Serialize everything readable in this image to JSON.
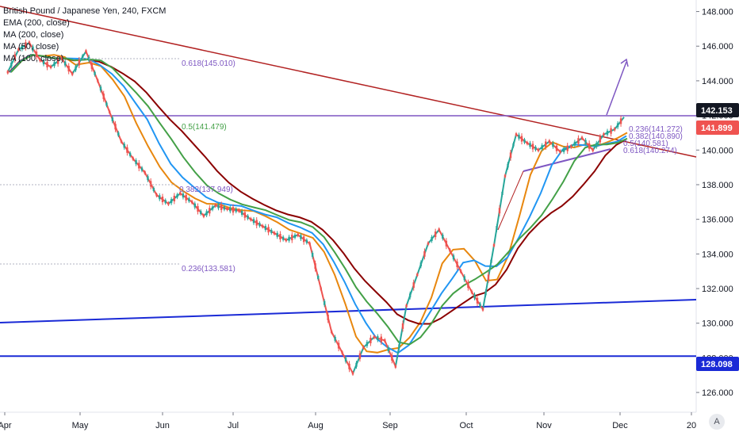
{
  "legend": {
    "title": "British Pound / Japanese Yen, 240, FXCM",
    "line2": "EMA (200, close)",
    "line3": "MA (200, close)",
    "line4": "MA (50, close)",
    "line5": "MA (100, close)"
  },
  "chart_data": {
    "type": "line",
    "title": "British Pound / Japanese Yen, 240, FXCM",
    "y_axis": {
      "range": [
        125.5,
        148.3
      ],
      "ticks": [
        "148.000",
        "146.000",
        "144.000",
        "142.000",
        "140.000",
        "138.000",
        "136.000",
        "134.000",
        "132.000",
        "130.000",
        "128.000",
        "126.000"
      ]
    },
    "x_axis": {
      "ticks": [
        "Apr",
        "May",
        "Jun",
        "Jul",
        "Aug",
        "Sep",
        "Oct",
        "Nov",
        "Dec",
        "20"
      ]
    },
    "price": {
      "name": "GBPJPY",
      "points": [
        [
          "Apr",
          144.5
        ],
        [
          "Apr",
          145.8
        ],
        [
          "Apr",
          146.2
        ],
        [
          "Apr",
          145.2
        ],
        [
          "Apr",
          144.8
        ],
        [
          "Apr",
          145.3
        ],
        [
          "Apr",
          144.4
        ],
        [
          "May",
          145.7
        ],
        [
          "May",
          144.0
        ],
        [
          "May",
          142.2
        ],
        [
          "May",
          140.5
        ],
        [
          "May",
          139.5
        ],
        [
          "May",
          138.7
        ],
        [
          "May",
          137.4
        ],
        [
          "Jun",
          136.9
        ],
        [
          "Jun",
          137.5
        ],
        [
          "Jun",
          137.0
        ],
        [
          "Jun",
          136.2
        ],
        [
          "Jun",
          136.8
        ],
        [
          "Jun",
          136.6
        ],
        [
          "Jul",
          136.5
        ],
        [
          "Jul",
          136.0
        ],
        [
          "Jul",
          135.6
        ],
        [
          "Jul",
          135.2
        ],
        [
          "Jul",
          134.8
        ],
        [
          "Jul",
          135.1
        ],
        [
          "Jul",
          134.6
        ],
        [
          "Aug",
          132.0
        ],
        [
          "Aug",
          129.5
        ],
        [
          "Aug",
          128.3
        ],
        [
          "Aug",
          127.1
        ],
        [
          "Aug",
          128.6
        ],
        [
          "Aug",
          129.2
        ],
        [
          "Aug",
          129.0
        ],
        [
          "Sep",
          127.5
        ],
        [
          "Sep",
          131.0
        ],
        [
          "Sep",
          132.8
        ],
        [
          "Sep",
          134.6
        ],
        [
          "Sep",
          135.4
        ],
        [
          "Sep",
          134.2
        ],
        [
          "Sep",
          133.0
        ],
        [
          "Oct",
          131.8
        ],
        [
          "Oct",
          130.8
        ],
        [
          "Oct",
          134.5
        ],
        [
          "Oct",
          138.5
        ],
        [
          "Oct",
          140.9
        ],
        [
          "Oct",
          140.4
        ],
        [
          "Oct",
          140.0
        ],
        [
          "Nov",
          140.5
        ],
        [
          "Nov",
          139.9
        ],
        [
          "Nov",
          140.2
        ],
        [
          "Nov",
          140.7
        ],
        [
          "Nov",
          140.0
        ],
        [
          "Nov",
          140.9
        ],
        [
          "Nov",
          141.2
        ],
        [
          "Dec",
          141.9
        ]
      ]
    },
    "series": [
      {
        "name": "EMA (200, close)",
        "color": "#e8870e"
      },
      {
        "name": "MA (200, close)",
        "color": "#8b0000"
      },
      {
        "name": "MA (50, close)",
        "color": "#2196f3"
      },
      {
        "name": "MA (100, close)",
        "color": "#43a047"
      }
    ],
    "levels": {
      "current_price": "142.153",
      "previous_price": "141.899",
      "support": "128.098"
    },
    "fib_labels": [
      {
        "text": "0.618(145.010)",
        "value": 145.01
      },
      {
        "text": "0.5(141.479)",
        "value": 141.479
      },
      {
        "text": "0.382(137.949)",
        "value": 137.949
      },
      {
        "text": "0.236(133.581)",
        "value": 133.581
      },
      {
        "text": "0.236(141.272)",
        "value": 141.272
      },
      {
        "text": "0.382(140.890)",
        "value": 140.89
      },
      {
        "text": "0.5(140.581)",
        "value": 140.581
      },
      {
        "text": "0.618(140.274)",
        "value": 140.274
      }
    ],
    "grid": false,
    "colors": {
      "up": "#26a69a",
      "down": "#ef5350",
      "trendline": "#b22222",
      "channel": "#1a2ad6",
      "resistance": "#7e57c2",
      "current_tag": "#131722",
      "previous_tag": "#ef5350",
      "support_tag": "#1a2ad6"
    }
  },
  "logo": "A"
}
